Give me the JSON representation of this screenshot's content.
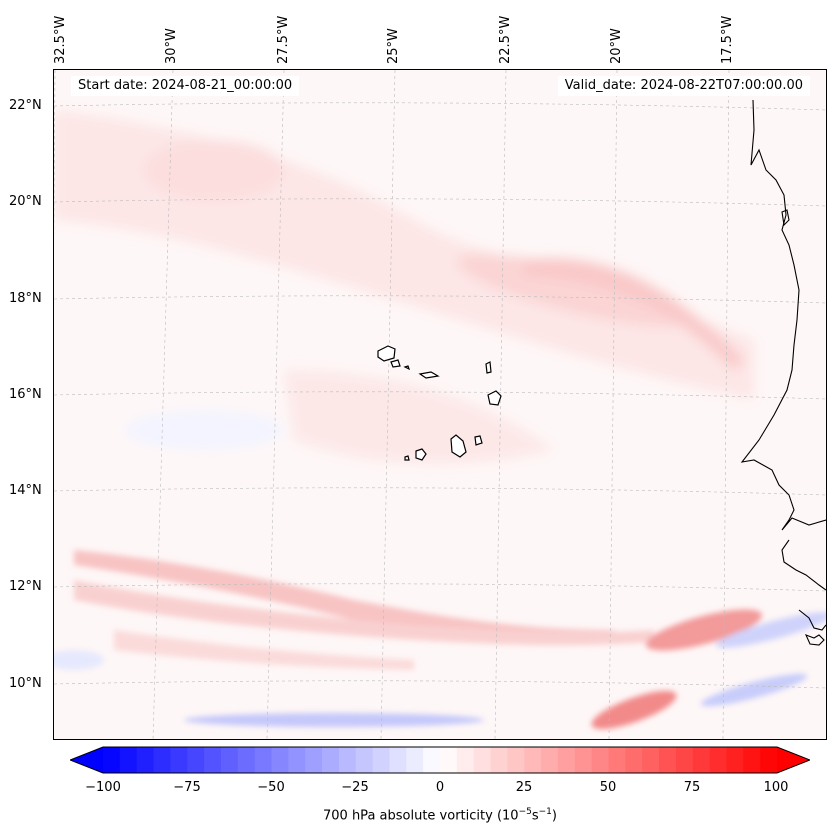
{
  "header": {
    "start_date": "Start date: 2024-08-21_00:00:00",
    "valid_date": "Valid_date: 2024-08-22T07:00:00.00"
  },
  "longitude_labels": [
    "32.5°W",
    "30°W",
    "27.5°W",
    "25°W",
    "22.5°W",
    "20°W",
    "17.5°W"
  ],
  "latitude_labels": [
    "22°N",
    "20°N",
    "18°N",
    "16°N",
    "14°N",
    "12°N",
    "10°N"
  ],
  "colorbar": {
    "ticks": [
      "−100",
      "−75",
      "−50",
      "−25",
      "0",
      "25",
      "50",
      "75",
      "100"
    ],
    "range": [
      -100,
      100
    ],
    "step": 5,
    "label_main": "700 hPa absolute vorticity (10",
    "label_exp1": "−5",
    "label_mid": "s",
    "label_exp2": "−1",
    "label_end": ")",
    "colors": {
      "negative": "#0000ff",
      "zero": "#ffffff",
      "positive": "#ff0000"
    }
  },
  "map": {
    "background": "#fef7f7",
    "coastline_color": "#000000",
    "gridline_color": "#bbbbbb"
  }
}
